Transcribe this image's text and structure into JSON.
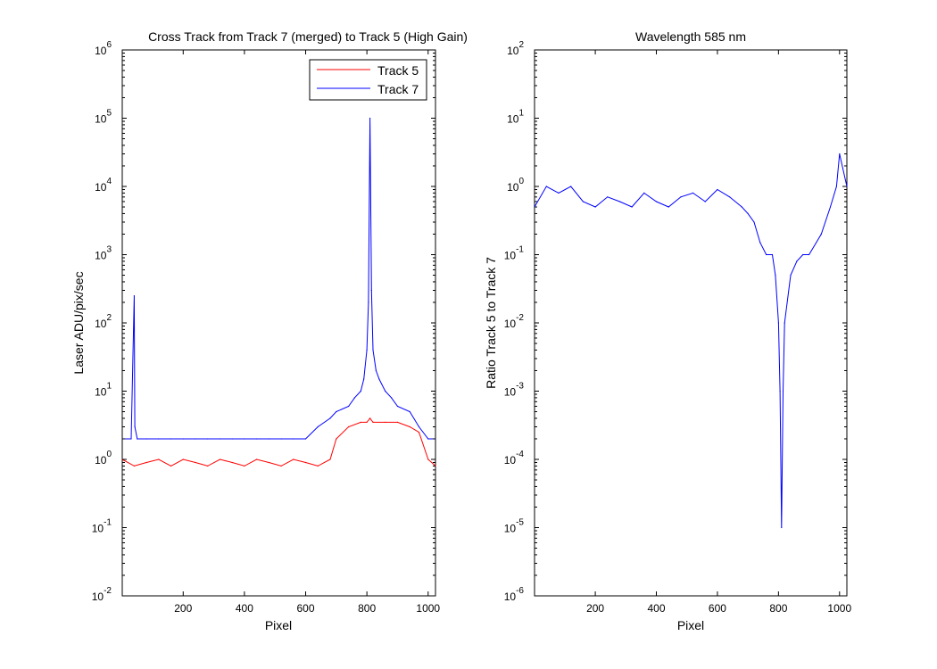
{
  "figure": {
    "background": "#ffffff"
  },
  "chart_data": [
    {
      "type": "line",
      "title": "Cross Track from Track 7 (merged) to Track 5 (High Gain)",
      "xlabel": "Pixel",
      "ylabel": "Laser ADU/pix/sec",
      "xlim": [
        1,
        1024
      ],
      "ylim": [
        0.01,
        1000000
      ],
      "yscale": "log",
      "xticks": [
        200,
        400,
        600,
        800,
        1000
      ],
      "yticks": [
        {
          "base": "10",
          "exp": "-2",
          "value": 0.01
        },
        {
          "base": "10",
          "exp": "-1",
          "value": 0.1
        },
        {
          "base": "10",
          "exp": "0",
          "value": 1
        },
        {
          "base": "10",
          "exp": "1",
          "value": 10
        },
        {
          "base": "10",
          "exp": "2",
          "value": 100
        },
        {
          "base": "10",
          "exp": "3",
          "value": 1000
        },
        {
          "base": "10",
          "exp": "4",
          "value": 10000
        },
        {
          "base": "10",
          "exp": "5",
          "value": 100000
        },
        {
          "base": "10",
          "exp": "6",
          "value": 1000000
        }
      ],
      "grid": false,
      "legend_position": "top-right",
      "series": [
        {
          "name": "Track 5",
          "color": "#ff0000",
          "x": [
            1,
            40,
            80,
            120,
            160,
            200,
            240,
            280,
            320,
            360,
            400,
            440,
            480,
            520,
            560,
            600,
            640,
            680,
            700,
            740,
            780,
            800,
            810,
            820,
            860,
            900,
            940,
            970,
            1000,
            1024
          ],
          "y": [
            1.0,
            0.8,
            0.9,
            1.0,
            0.8,
            1.0,
            0.9,
            0.8,
            1.0,
            0.9,
            0.8,
            1.0,
            0.9,
            0.8,
            1.0,
            0.9,
            0.8,
            1.0,
            2.0,
            3.0,
            3.5,
            3.5,
            4.0,
            3.5,
            3.5,
            3.5,
            3.0,
            2.5,
            1.0,
            0.8
          ]
        },
        {
          "name": "Track 7",
          "color": "#0000ff",
          "x": [
            1,
            30,
            40,
            42,
            50,
            80,
            120,
            160,
            200,
            240,
            280,
            320,
            360,
            400,
            440,
            480,
            520,
            560,
            600,
            640,
            680,
            700,
            740,
            760,
            780,
            790,
            800,
            805,
            810,
            815,
            820,
            830,
            840,
            860,
            880,
            900,
            940,
            970,
            1000,
            1024
          ],
          "y": [
            2.0,
            2.0,
            250,
            3.0,
            2.0,
            2.0,
            2.0,
            2.0,
            2.0,
            2.0,
            2.0,
            2.0,
            2.0,
            2.0,
            2.0,
            2.0,
            2.0,
            2.0,
            2.0,
            3.0,
            4.0,
            5.0,
            6.0,
            8.0,
            10.0,
            15.0,
            40.0,
            200,
            100000,
            300,
            40.0,
            20.0,
            15.0,
            10.0,
            8.0,
            6.0,
            5.0,
            3.0,
            2.0,
            2.0
          ]
        }
      ]
    },
    {
      "type": "line",
      "title": "Wavelength 585 nm",
      "xlabel": "Pixel",
      "ylabel": "Ratio Track 5 to Track 7",
      "xlim": [
        1,
        1024
      ],
      "ylim": [
        1e-06,
        100
      ],
      "yscale": "log",
      "xticks": [
        200,
        400,
        600,
        800,
        1000
      ],
      "yticks": [
        {
          "base": "10",
          "exp": "-6",
          "value": 1e-06
        },
        {
          "base": "10",
          "exp": "-5",
          "value": 1e-05
        },
        {
          "base": "10",
          "exp": "-4",
          "value": 0.0001
        },
        {
          "base": "10",
          "exp": "-3",
          "value": 0.001
        },
        {
          "base": "10",
          "exp": "-2",
          "value": 0.01
        },
        {
          "base": "10",
          "exp": "-1",
          "value": 0.1
        },
        {
          "base": "10",
          "exp": "0",
          "value": 1
        },
        {
          "base": "10",
          "exp": "1",
          "value": 10
        },
        {
          "base": "10",
          "exp": "2",
          "value": 100
        }
      ],
      "grid": false,
      "series": [
        {
          "color": "#0000ff",
          "x": [
            1,
            40,
            80,
            120,
            160,
            200,
            240,
            280,
            320,
            360,
            400,
            440,
            480,
            520,
            560,
            600,
            640,
            680,
            700,
            720,
            740,
            760,
            780,
            790,
            800,
            805,
            810,
            815,
            820,
            840,
            860,
            880,
            900,
            940,
            970,
            990,
            1000,
            1024
          ],
          "y": [
            0.5,
            1.0,
            0.8,
            1.0,
            0.6,
            0.5,
            0.7,
            0.6,
            0.5,
            0.8,
            0.6,
            0.5,
            0.7,
            0.8,
            0.6,
            0.9,
            0.7,
            0.5,
            0.4,
            0.3,
            0.15,
            0.1,
            0.1,
            0.05,
            0.01,
            0.001,
            1e-05,
            0.001,
            0.01,
            0.05,
            0.08,
            0.1,
            0.1,
            0.2,
            0.5,
            1.0,
            3.0,
            1.0
          ]
        }
      ]
    }
  ]
}
